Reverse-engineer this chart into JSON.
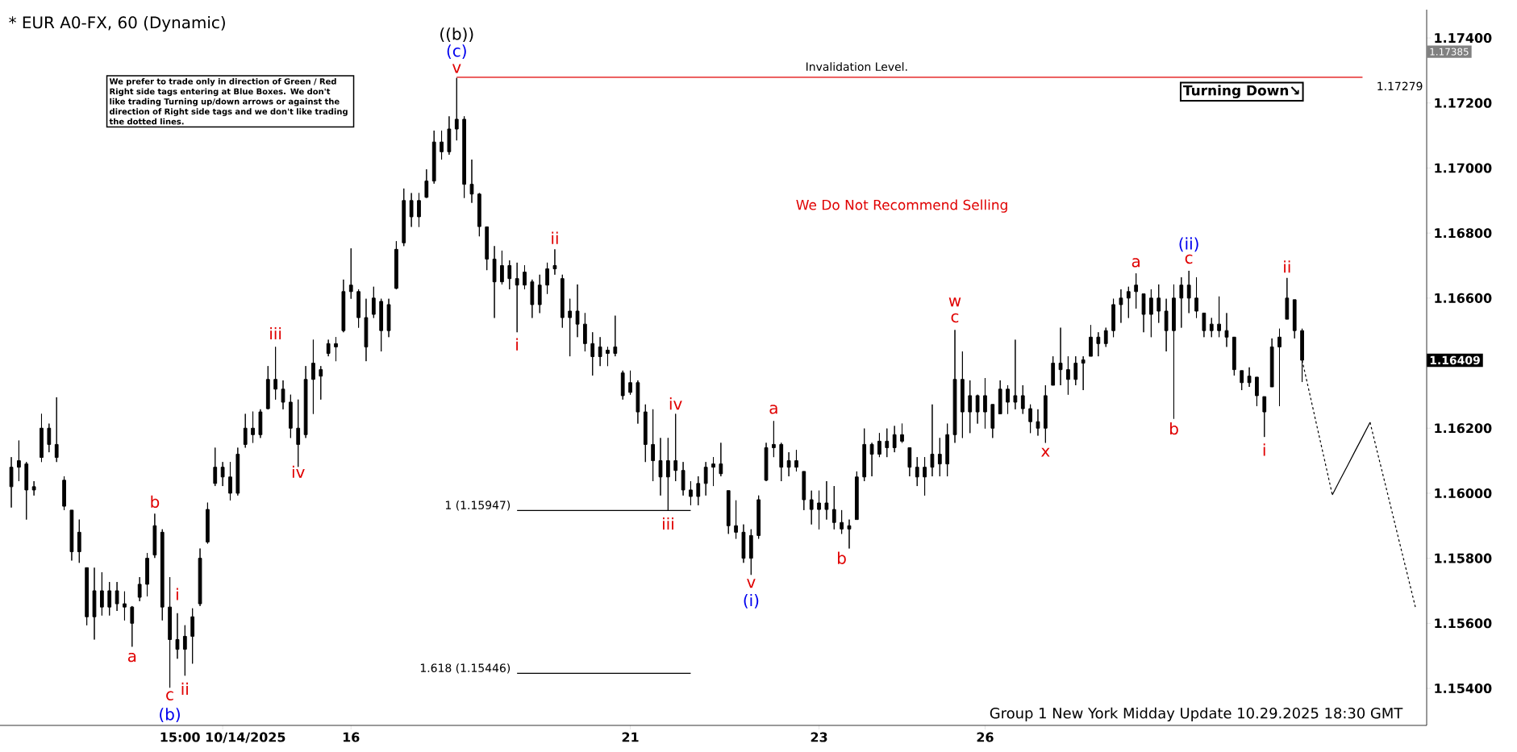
{
  "chart_data": {
    "type": "candlestick",
    "title": "* EUR A0-FX, 60 (Dynamic)",
    "color": "#000000",
    "ylim": [
      1.15286,
      1.17487
    ],
    "yticks": [
      {
        "value": 1.154,
        "label": "1.15400"
      },
      {
        "value": 1.156,
        "label": "1.15600"
      },
      {
        "value": 1.158,
        "label": "1.15800"
      },
      {
        "value": 1.16,
        "label": "1.16000"
      },
      {
        "value": 1.162,
        "label": "1.16200"
      },
      {
        "value": 1.166,
        "label": "1.16600"
      },
      {
        "value": 1.168,
        "label": "1.16800"
      },
      {
        "value": 1.17,
        "label": "1.17000"
      },
      {
        "value": 1.172,
        "label": "1.17200"
      },
      {
        "value": 1.174,
        "label": "1.17400"
      }
    ],
    "categories": [
      null,
      null,
      null,
      null,
      null,
      null,
      null,
      null,
      null,
      null,
      null,
      null,
      null,
      null,
      null,
      null,
      null,
      null,
      null,
      null,
      null,
      null,
      null,
      null,
      null,
      null,
      null,
      null,
      "15:00 10/14/2025",
      null,
      null,
      null,
      null,
      null,
      null,
      null,
      null,
      null,
      null,
      null,
      null,
      null,
      null,
      null,
      null,
      "16",
      null,
      null,
      null,
      null,
      null,
      null,
      null,
      null,
      null,
      null,
      null,
      null,
      null,
      null,
      null,
      null,
      null,
      null,
      null,
      null,
      null,
      null,
      null,
      null,
      null,
      null,
      null,
      null,
      null,
      null,
      null,
      null,
      null,
      null,
      null,
      null,
      "21",
      null,
      null,
      null,
      null,
      null,
      null,
      null,
      null,
      null,
      null,
      null,
      null,
      null,
      null,
      null,
      null,
      null,
      null,
      null,
      null,
      null,
      null,
      null,
      null,
      "23",
      null,
      null,
      null,
      null,
      null,
      null,
      null,
      null,
      null,
      null,
      null,
      null,
      null,
      null,
      null,
      null,
      null,
      null,
      null,
      null,
      null,
      "26",
      null,
      null,
      null,
      null,
      null,
      null,
      null,
      null,
      null,
      null,
      null,
      null,
      null,
      null,
      null,
      null,
      null,
      null,
      null,
      null,
      null,
      null,
      null,
      null,
      null,
      null,
      null,
      null,
      null,
      null,
      null,
      null,
      null,
      null,
      null,
      null,
      null,
      null,
      null,
      null,
      null,
      null,
      null,
      null,
      null,
      null,
      null,
      null,
      null,
      null,
      null,
      null,
      null,
      null,
      null,
      null,
      null
    ],
    "ohlc": [
      [
        1.1602,
        1.16111,
        1.15956,
        1.1608
      ],
      [
        1.1608,
        1.16162,
        1.16037,
        1.161
      ],
      [
        1.1609,
        1.16096,
        1.15919,
        1.1601
      ],
      [
        1.1601,
        1.16037,
        1.15993,
        1.1602
      ],
      [
        1.1611,
        1.16244,
        1.16096,
        1.162
      ],
      [
        1.162,
        1.16214,
        1.16126,
        1.1615
      ],
      [
        1.1615,
        1.16295,
        1.16096,
        1.1611
      ],
      [
        1.1604,
        1.16052,
        1.15948,
        1.1596
      ],
      [
        1.15948,
        1.15948,
        1.15793,
        1.1582
      ],
      [
        1.1582,
        1.15919,
        1.15786,
        1.1588
      ],
      [
        1.15771,
        1.15771,
        1.15594,
        1.1562
      ],
      [
        1.1562,
        1.15771,
        1.1555,
        1.157
      ],
      [
        1.157,
        1.15757,
        1.15624,
        1.1565
      ],
      [
        1.1565,
        1.15727,
        1.15624,
        1.157
      ],
      [
        1.157,
        1.15727,
        1.15638,
        1.1566
      ],
      [
        1.1566,
        1.15698,
        1.15609,
        1.1565
      ],
      [
        1.1565,
        1.15653,
        1.15528,
        1.156
      ],
      [
        1.1568,
        1.15742,
        1.15668,
        1.1572
      ],
      [
        1.1572,
        1.15816,
        1.15683,
        1.158
      ],
      [
        1.1581,
        1.15937,
        1.15801,
        1.159
      ],
      [
        1.1588,
        1.15889,
        1.15609,
        1.1565
      ],
      [
        1.1565,
        1.15742,
        1.15402,
        1.1555
      ],
      [
        1.1555,
        1.15631,
        1.15491,
        1.1552
      ],
      [
        1.1552,
        1.15594,
        1.15439,
        1.1556
      ],
      [
        1.1556,
        1.15646,
        1.15476,
        1.1562
      ],
      [
        1.1566,
        1.1583,
        1.15653,
        1.158
      ],
      [
        1.1585,
        1.15971,
        1.15845,
        1.1595
      ],
      [
        1.1603,
        1.1614,
        1.16022,
        1.1608
      ],
      [
        1.1608,
        1.16096,
        1.16022,
        1.1605
      ],
      [
        1.1605,
        1.16096,
        1.15978,
        1.16
      ],
      [
        1.16,
        1.1614,
        1.15993,
        1.1612
      ],
      [
        1.1615,
        1.16244,
        1.1614,
        1.162
      ],
      [
        1.162,
        1.16251,
        1.16155,
        1.1618
      ],
      [
        1.1618,
        1.16258,
        1.1617,
        1.1625
      ],
      [
        1.1626,
        1.16391,
        1.16258,
        1.1635
      ],
      [
        1.1635,
        1.1645,
        1.16288,
        1.1632
      ],
      [
        1.1632,
        1.16347,
        1.16258,
        1.1628
      ],
      [
        1.1628,
        1.16303,
        1.1617,
        1.162
      ],
      [
        1.162,
        1.16288,
        1.16081,
        1.1615
      ],
      [
        1.1618,
        1.16391,
        1.1617,
        1.1635
      ],
      [
        1.1635,
        1.16472,
        1.16244,
        1.164
      ],
      [
        1.1638,
        1.16391,
        1.16288,
        1.1636
      ],
      [
        1.1643,
        1.16472,
        1.16421,
        1.1646
      ],
      [
        1.1646,
        1.1648,
        1.16406,
        1.1645
      ],
      [
        1.165,
        1.16657,
        1.16495,
        1.1662
      ],
      [
        1.1662,
        1.16753,
        1.16598,
        1.1664
      ],
      [
        1.1662,
        1.16627,
        1.16509,
        1.1654
      ],
      [
        1.1654,
        1.16598,
        1.16406,
        1.1645
      ],
      [
        1.1655,
        1.16635,
        1.16539,
        1.166
      ],
      [
        1.1659,
        1.16598,
        1.16436,
        1.165
      ],
      [
        1.165,
        1.16598,
        1.1648,
        1.1658
      ],
      [
        1.1663,
        1.16775,
        1.16627,
        1.1675
      ],
      [
        1.1677,
        1.16937,
        1.1676,
        1.169
      ],
      [
        1.169,
        1.16923,
        1.16819,
        1.1685
      ],
      [
        1.1685,
        1.16923,
        1.16819,
        1.169
      ],
      [
        1.1691,
        1.16996,
        1.16908,
        1.1696
      ],
      [
        1.1696,
        1.17115,
        1.16952,
        1.1708
      ],
      [
        1.1708,
        1.17115,
        1.17026,
        1.1705
      ],
      [
        1.1705,
        1.17159,
        1.17041,
        1.1712
      ],
      [
        1.1712,
        1.17277,
        1.17085,
        1.1715
      ],
      [
        1.1715,
        1.17159,
        1.16908,
        1.1695
      ],
      [
        1.1695,
        1.17026,
        1.16893,
        1.1692
      ],
      [
        1.1692,
        1.16923,
        1.1679,
        1.1682
      ],
      [
        1.16819,
        1.16819,
        1.16686,
        1.1672
      ],
      [
        1.1672,
        1.1676,
        1.16539,
        1.1665
      ],
      [
        1.1665,
        1.16746,
        1.16642,
        1.167
      ],
      [
        1.167,
        1.16716,
        1.16627,
        1.1666
      ],
      [
        1.1666,
        1.16709,
        1.16495,
        1.1664
      ],
      [
        1.1664,
        1.16701,
        1.16627,
        1.1668
      ],
      [
        1.1665,
        1.16657,
        1.16539,
        1.1658
      ],
      [
        1.1658,
        1.16672,
        1.16554,
        1.1664
      ],
      [
        1.1664,
        1.16709,
        1.16613,
        1.1669
      ],
      [
        1.1669,
        1.1675,
        1.16672,
        1.167
      ],
      [
        1.1666,
        1.16672,
        1.16509,
        1.1654
      ],
      [
        1.1654,
        1.16598,
        1.16421,
        1.1656
      ],
      [
        1.1656,
        1.16642,
        1.1648,
        1.1652
      ],
      [
        1.1652,
        1.16554,
        1.16436,
        1.1646
      ],
      [
        1.1646,
        1.16495,
        1.16362,
        1.1642
      ],
      [
        1.1642,
        1.1648,
        1.16391,
        1.1645
      ],
      [
        1.1644,
        1.1645,
        1.16391,
        1.1643
      ],
      [
        1.1643,
        1.16546,
        1.16421,
        1.1645
      ],
      [
        1.1637,
        1.16377,
        1.16288,
        1.163
      ],
      [
        1.1631,
        1.16377,
        1.16303,
        1.1634
      ],
      [
        1.1634,
        1.16347,
        1.16214,
        1.1625
      ],
      [
        1.1625,
        1.16273,
        1.16096,
        1.1615
      ],
      [
        1.1615,
        1.16258,
        1.16037,
        1.161
      ],
      [
        1.161,
        1.1617,
        1.15993,
        1.1605
      ],
      [
        1.1605,
        1.1617,
        1.15946,
        1.161
      ],
      [
        1.161,
        1.16244,
        1.16037,
        1.1607
      ],
      [
        1.1607,
        1.16096,
        1.15993,
        1.1601
      ],
      [
        1.1601,
        1.16037,
        1.15963,
        1.1599
      ],
      [
        1.1599,
        1.16052,
        1.15963,
        1.1603
      ],
      [
        1.1603,
        1.16096,
        1.15993,
        1.1608
      ],
      [
        1.1608,
        1.16111,
        1.16022,
        1.1609
      ],
      [
        1.1609,
        1.16155,
        1.16052,
        1.1606
      ],
      [
        1.16008,
        1.16008,
        1.15875,
        1.159
      ],
      [
        1.159,
        1.15978,
        1.1586,
        1.1588
      ],
      [
        1.1588,
        1.15904,
        1.15786,
        1.158
      ],
      [
        1.158,
        1.15889,
        1.15749,
        1.1587
      ],
      [
        1.1587,
        1.15993,
        1.1586,
        1.1598
      ],
      [
        1.1604,
        1.16155,
        1.16037,
        1.1614
      ],
      [
        1.1614,
        1.16222,
        1.16111,
        1.1615
      ],
      [
        1.1615,
        1.16155,
        1.16037,
        1.1608
      ],
      [
        1.1608,
        1.16126,
        1.16052,
        1.161
      ],
      [
        1.161,
        1.16133,
        1.16067,
        1.1608
      ],
      [
        1.16067,
        1.16067,
        1.15948,
        1.1598
      ],
      [
        1.1598,
        1.16008,
        1.15904,
        1.1595
      ],
      [
        1.1595,
        1.16008,
        1.15889,
        1.1597
      ],
      [
        1.1597,
        1.16037,
        1.15919,
        1.1595
      ],
      [
        1.1595,
        1.16022,
        1.15889,
        1.1591
      ],
      [
        1.1591,
        1.15948,
        1.15875,
        1.1589
      ],
      [
        1.1589,
        1.15919,
        1.1583,
        1.159
      ],
      [
        1.15919,
        1.16067,
        1.15919,
        1.1605
      ],
      [
        1.1605,
        1.16199,
        1.16037,
        1.1615
      ],
      [
        1.1615,
        1.16155,
        1.16052,
        1.1612
      ],
      [
        1.1612,
        1.16185,
        1.16111,
        1.1616
      ],
      [
        1.1616,
        1.16199,
        1.16111,
        1.1614
      ],
      [
        1.1614,
        1.16207,
        1.16126,
        1.1618
      ],
      [
        1.1618,
        1.16214,
        1.16155,
        1.1616
      ],
      [
        1.1614,
        1.1614,
        1.16052,
        1.1608
      ],
      [
        1.1608,
        1.16111,
        1.16022,
        1.1605
      ],
      [
        1.1605,
        1.16111,
        1.15993,
        1.1608
      ],
      [
        1.1608,
        1.16273,
        1.16052,
        1.1612
      ],
      [
        1.1612,
        1.1617,
        1.16052,
        1.1609
      ],
      [
        1.1609,
        1.16214,
        1.16052,
        1.1618
      ],
      [
        1.1618,
        1.16502,
        1.16155,
        1.1635
      ],
      [
        1.1635,
        1.16436,
        1.1617,
        1.1625
      ],
      [
        1.1625,
        1.16347,
        1.16185,
        1.163
      ],
      [
        1.163,
        1.16303,
        1.16214,
        1.1625
      ],
      [
        1.1625,
        1.16354,
        1.16199,
        1.163
      ],
      [
        1.16273,
        1.16273,
        1.1617,
        1.162
      ],
      [
        1.16244,
        1.16347,
        1.16244,
        1.1632
      ],
      [
        1.1632,
        1.16332,
        1.16244,
        1.1628
      ],
      [
        1.1628,
        1.16472,
        1.16258,
        1.163
      ],
      [
        1.163,
        1.16332,
        1.16244,
        1.1626
      ],
      [
        1.1626,
        1.16273,
        1.16185,
        1.1622
      ],
      [
        1.1622,
        1.16258,
        1.16177,
        1.162
      ],
      [
        1.162,
        1.16332,
        1.16155,
        1.163
      ],
      [
        1.16332,
        1.16421,
        1.16332,
        1.164
      ],
      [
        1.164,
        1.16509,
        1.16332,
        1.1638
      ],
      [
        1.1638,
        1.16421,
        1.16303,
        1.1635
      ],
      [
        1.1635,
        1.16421,
        1.16332,
        1.164
      ],
      [
        1.164,
        1.16421,
        1.16317,
        1.1641
      ],
      [
        1.16421,
        1.16517,
        1.16421,
        1.1648
      ],
      [
        1.1648,
        1.16495,
        1.16421,
        1.1646
      ],
      [
        1.1646,
        1.16509,
        1.1645,
        1.165
      ],
      [
        1.165,
        1.16598,
        1.1648,
        1.1658
      ],
      [
        1.1658,
        1.16627,
        1.16524,
        1.166
      ],
      [
        1.166,
        1.16635,
        1.16539,
        1.1662
      ],
      [
        1.1662,
        1.16676,
        1.16568,
        1.1664
      ],
      [
        1.16613,
        1.16613,
        1.16495,
        1.1655
      ],
      [
        1.1655,
        1.16627,
        1.1648,
        1.166
      ],
      [
        1.166,
        1.16642,
        1.16524,
        1.1656
      ],
      [
        1.1656,
        1.16598,
        1.16436,
        1.165
      ],
      [
        1.165,
        1.16642,
        1.16229,
        1.166
      ],
      [
        1.166,
        1.16664,
        1.16509,
        1.1664
      ],
      [
        1.1664,
        1.16684,
        1.16554,
        1.166
      ],
      [
        1.166,
        1.16664,
        1.16539,
        1.1656
      ],
      [
        1.16554,
        1.16554,
        1.1648,
        1.165
      ],
      [
        1.165,
        1.16539,
        1.1648,
        1.1652
      ],
      [
        1.1652,
        1.16605,
        1.1648,
        1.165
      ],
      [
        1.165,
        1.16554,
        1.1645,
        1.1648
      ],
      [
        1.1648,
        1.1648,
        1.16362,
        1.1638
      ],
      [
        1.16377,
        1.16377,
        1.16317,
        1.1634
      ],
      [
        1.1634,
        1.16387,
        1.16327,
        1.1636
      ],
      [
        1.16357,
        1.16357,
        1.16268,
        1.163
      ],
      [
        1.16297,
        1.16297,
        1.16173,
        1.1625
      ],
      [
        1.16327,
        1.16476,
        1.16327,
        1.1645
      ],
      [
        1.1645,
        1.16506,
        1.16268,
        1.1648
      ],
      [
        1.16535,
        1.16662,
        1.16535,
        1.166
      ],
      [
        1.16595,
        1.16595,
        1.16476,
        1.165
      ],
      [
        1.165,
        1.16506,
        1.16342,
        1.16409
      ],
      null,
      null,
      null,
      null,
      null,
      null,
      null,
      null,
      null,
      null,
      null,
      null,
      null,
      null,
      null
    ],
    "series": [
      {
        "type": "line",
        "color": "#e00000",
        "values": [
          null,
          null,
          null,
          null,
          null,
          null,
          null,
          null,
          null,
          null,
          null,
          null,
          null,
          null,
          null,
          null,
          null,
          null,
          null,
          null,
          null,
          null,
          null,
          null,
          null,
          null,
          null,
          null,
          null,
          null,
          null,
          null,
          null,
          null,
          null,
          null,
          null,
          null,
          null,
          null,
          null,
          null,
          null,
          null,
          null,
          null,
          null,
          null,
          null,
          null,
          null,
          null,
          null,
          null,
          null,
          null,
          null,
          null,
          null,
          1.17279,
          1.17279,
          1.17279,
          1.17279,
          1.17279,
          1.17279,
          1.17279,
          1.17279,
          1.17279,
          1.17279,
          1.17279,
          1.17279,
          1.17279,
          1.17279,
          1.17279,
          1.17279,
          1.17279,
          1.17279,
          1.17279,
          1.17279,
          1.17279,
          1.17279,
          1.17279,
          1.17279,
          1.17279,
          1.17279,
          1.17279,
          1.17279,
          1.17279,
          1.17279,
          1.17279,
          1.17279,
          1.17279,
          1.17279,
          1.17279,
          1.17279,
          1.17279,
          1.17279,
          1.17279,
          1.17279,
          1.17279,
          1.17279,
          1.17279,
          1.17279,
          1.17279,
          1.17279,
          1.17279,
          1.17279,
          1.17279,
          1.17279,
          1.17279,
          1.17279,
          1.17279,
          1.17279,
          1.17279,
          1.17279,
          1.17279,
          1.17279,
          1.17279,
          1.17279,
          1.17279,
          1.17279,
          1.17279,
          1.17279,
          1.17279,
          1.17279,
          1.17279,
          1.17279,
          1.17279,
          1.17279,
          1.17279,
          1.17279,
          1.17279,
          1.17279,
          1.17279,
          1.17279,
          1.17279,
          1.17279,
          1.17279,
          1.17279,
          1.17279,
          1.17279,
          1.17279,
          1.17279,
          1.17279,
          1.17279,
          1.17279,
          1.17279,
          1.17279,
          1.17279,
          1.17279,
          1.17279,
          1.17279,
          1.17279,
          1.17279,
          1.17279,
          1.17279,
          1.17279,
          1.17279,
          1.17279,
          1.17279,
          1.17279,
          1.17279,
          1.17279,
          1.17279,
          1.17279,
          1.17279,
          1.17279,
          1.17279,
          1.17279,
          1.17279,
          1.17279,
          1.17279,
          1.17279,
          1.17279,
          1.17279,
          1.17279,
          1.17279,
          1.17279,
          1.17279,
          1.17279,
          null,
          null,
          null,
          null,
          null,
          null,
          null
        ]
      },
      {
        "type": "line",
        "color": "#000000",
        "values": [
          null,
          null,
          null,
          null,
          null,
          null,
          null,
          null,
          null,
          null,
          null,
          null,
          null,
          null,
          null,
          null,
          null,
          null,
          null,
          null,
          null,
          null,
          null,
          null,
          null,
          null,
          null,
          null,
          null,
          null,
          null,
          null,
          null,
          null,
          null,
          null,
          null,
          null,
          null,
          null,
          null,
          null,
          null,
          null,
          null,
          null,
          null,
          null,
          null,
          null,
          null,
          null,
          null,
          null,
          null,
          null,
          null,
          null,
          null,
          null,
          null,
          null,
          null,
          null,
          null,
          null,
          null,
          1.15947,
          1.15947,
          1.15947,
          1.15947,
          1.15947,
          1.15947,
          1.15947,
          1.15947,
          1.15947,
          1.15947,
          1.15947,
          1.15947,
          1.15947,
          1.15947,
          1.15947,
          1.15947,
          1.15947,
          1.15947,
          1.15947,
          1.15947,
          1.15947,
          1.15947,
          1.15947,
          1.15947,
          null,
          null,
          null,
          null,
          null,
          null,
          null,
          null,
          null,
          null,
          null,
          null,
          null,
          null,
          null,
          null,
          null,
          null,
          null,
          null,
          null,
          null,
          null,
          null,
          null,
          null,
          null,
          null,
          null,
          null,
          null,
          null,
          null,
          null,
          null,
          null,
          null,
          null,
          null,
          null,
          null,
          null,
          null,
          null,
          null,
          null,
          null,
          null,
          null,
          null,
          null,
          null,
          null,
          null,
          null,
          null,
          null,
          null,
          null,
          null,
          null,
          null,
          null,
          null,
          null,
          null,
          null,
          null,
          null,
          null,
          null,
          null,
          null,
          null,
          null,
          null,
          null,
          null,
          null,
          null,
          null,
          null,
          null,
          null,
          null,
          null,
          null,
          null,
          null,
          null,
          null,
          null,
          null,
          null,
          null,
          null
        ]
      },
      {
        "type": "line",
        "color": "#000000",
        "values": [
          null,
          null,
          null,
          null,
          null,
          null,
          null,
          null,
          null,
          null,
          null,
          null,
          null,
          null,
          null,
          null,
          null,
          null,
          null,
          null,
          null,
          null,
          null,
          null,
          null,
          null,
          null,
          null,
          null,
          null,
          null,
          null,
          null,
          null,
          null,
          null,
          null,
          null,
          null,
          null,
          null,
          null,
          null,
          null,
          null,
          null,
          null,
          null,
          null,
          null,
          null,
          null,
          null,
          null,
          null,
          null,
          null,
          null,
          null,
          null,
          null,
          null,
          null,
          null,
          null,
          null,
          null,
          1.15446,
          1.15446,
          1.15446,
          1.15446,
          1.15446,
          1.15446,
          1.15446,
          1.15446,
          1.15446,
          1.15446,
          1.15446,
          1.15446,
          1.15446,
          1.15446,
          1.15446,
          1.15446,
          1.15446,
          1.15446,
          1.15446,
          1.15446,
          1.15446,
          1.15446,
          1.15446,
          1.15446,
          null,
          null,
          null,
          null,
          null,
          null,
          null,
          null,
          null,
          null,
          null,
          null,
          null,
          null,
          null,
          null,
          null,
          null,
          null,
          null,
          null,
          null,
          null,
          null,
          null,
          null,
          null,
          null,
          null,
          null,
          null,
          null,
          null,
          null,
          null,
          null,
          null,
          null,
          null,
          null,
          null,
          null,
          null,
          null,
          null,
          null,
          null,
          null,
          null,
          null,
          null,
          null,
          null,
          null,
          null,
          null,
          null,
          null,
          null,
          null,
          null,
          null,
          null,
          null,
          null,
          null,
          null,
          null,
          null,
          null,
          null,
          null,
          null,
          null,
          null,
          null,
          null,
          null,
          null,
          null,
          null,
          null,
          null,
          null,
          null,
          null,
          null,
          null,
          null,
          null,
          null,
          null,
          null,
          null,
          null,
          null
        ]
      },
      {
        "type": "line",
        "color": "#000000",
        "line_style": "dashed",
        "values": [
          null,
          null,
          null,
          null,
          null,
          null,
          null,
          null,
          null,
          null,
          null,
          null,
          null,
          null,
          null,
          null,
          null,
          null,
          null,
          null,
          null,
          null,
          null,
          null,
          null,
          null,
          null,
          null,
          null,
          null,
          null,
          null,
          null,
          null,
          null,
          null,
          null,
          null,
          null,
          null,
          null,
          null,
          null,
          null,
          null,
          null,
          null,
          null,
          null,
          null,
          null,
          null,
          null,
          null,
          null,
          null,
          null,
          null,
          null,
          null,
          null,
          null,
          null,
          null,
          null,
          null,
          null,
          null,
          null,
          null,
          null,
          null,
          null,
          null,
          null,
          null,
          null,
          null,
          null,
          null,
          null,
          null,
          null,
          null,
          null,
          null,
          null,
          null,
          null,
          null,
          null,
          null,
          null,
          null,
          null,
          null,
          null,
          null,
          null,
          null,
          null,
          null,
          null,
          null,
          null,
          null,
          null,
          null,
          null,
          null,
          null,
          null,
          null,
          null,
          null,
          null,
          null,
          null,
          null,
          null,
          null,
          null,
          null,
          null,
          null,
          null,
          null,
          null,
          null,
          null,
          null,
          null,
          null,
          null,
          null,
          null,
          null,
          null,
          null,
          null,
          null,
          null,
          null,
          null,
          null,
          null,
          null,
          null,
          null,
          null,
          null,
          null,
          null,
          null,
          null,
          null,
          null,
          null,
          null,
          null,
          null,
          null,
          null,
          null,
          null,
          null,
          null,
          null,
          null,
          null,
          null,
          1.16409,
          1.16306,
          1.16202,
          1.16099,
          1.15995,
          null,
          null,
          null,
          null,
          null,
          null,
          null,
          null,
          null,
          null,
          null
        ]
      },
      {
        "type": "line",
        "color": "#000000",
        "line_style": "solid",
        "values": [
          null,
          null,
          null,
          null,
          null,
          null,
          null,
          null,
          null,
          null,
          null,
          null,
          null,
          null,
          null,
          null,
          null,
          null,
          null,
          null,
          null,
          null,
          null,
          null,
          null,
          null,
          null,
          null,
          null,
          null,
          null,
          null,
          null,
          null,
          null,
          null,
          null,
          null,
          null,
          null,
          null,
          null,
          null,
          null,
          null,
          null,
          null,
          null,
          null,
          null,
          null,
          null,
          null,
          null,
          null,
          null,
          null,
          null,
          null,
          null,
          null,
          null,
          null,
          null,
          null,
          null,
          null,
          null,
          null,
          null,
          null,
          null,
          null,
          null,
          null,
          null,
          null,
          null,
          null,
          null,
          null,
          null,
          null,
          null,
          null,
          null,
          null,
          null,
          null,
          null,
          null,
          null,
          null,
          null,
          null,
          null,
          null,
          null,
          null,
          null,
          null,
          null,
          null,
          null,
          null,
          null,
          null,
          null,
          null,
          null,
          null,
          null,
          null,
          null,
          null,
          null,
          null,
          null,
          null,
          null,
          null,
          null,
          null,
          null,
          null,
          null,
          null,
          null,
          null,
          null,
          null,
          null,
          null,
          null,
          null,
          null,
          null,
          null,
          null,
          null,
          null,
          null,
          null,
          null,
          null,
          null,
          null,
          null,
          null,
          null,
          null,
          null,
          null,
          null,
          null,
          null,
          null,
          null,
          null,
          null,
          null,
          null,
          null,
          null,
          null,
          null,
          null,
          null,
          null,
          null,
          null,
          null,
          null,
          null,
          null,
          1.15995,
          1.1604,
          1.16084,
          1.16129,
          1.16173,
          1.16218,
          null,
          null,
          null,
          null,
          null,
          null
        ]
      },
      {
        "type": "line",
        "color": "#000000",
        "line_style": "dashed",
        "values": [
          null,
          null,
          null,
          null,
          null,
          null,
          null,
          null,
          null,
          null,
          null,
          null,
          null,
          null,
          null,
          null,
          null,
          null,
          null,
          null,
          null,
          null,
          null,
          null,
          null,
          null,
          null,
          null,
          null,
          null,
          null,
          null,
          null,
          null,
          null,
          null,
          null,
          null,
          null,
          null,
          null,
          null,
          null,
          null,
          null,
          null,
          null,
          null,
          null,
          null,
          null,
          null,
          null,
          null,
          null,
          null,
          null,
          null,
          null,
          null,
          null,
          null,
          null,
          null,
          null,
          null,
          null,
          null,
          null,
          null,
          null,
          null,
          null,
          null,
          null,
          null,
          null,
          null,
          null,
          null,
          null,
          null,
          null,
          null,
          null,
          null,
          null,
          null,
          null,
          null,
          null,
          null,
          null,
          null,
          null,
          null,
          null,
          null,
          null,
          null,
          null,
          null,
          null,
          null,
          null,
          null,
          null,
          null,
          null,
          null,
          null,
          null,
          null,
          null,
          null,
          null,
          null,
          null,
          null,
          null,
          null,
          null,
          null,
          null,
          null,
          null,
          null,
          null,
          null,
          null,
          null,
          null,
          null,
          null,
          null,
          null,
          null,
          null,
          null,
          null,
          null,
          null,
          null,
          null,
          null,
          null,
          null,
          null,
          null,
          null,
          null,
          null,
          null,
          null,
          null,
          null,
          null,
          null,
          null,
          null,
          null,
          null,
          null,
          null,
          null,
          null,
          null,
          null,
          null,
          null,
          null,
          null,
          null,
          null,
          null,
          null,
          null,
          null,
          null,
          null,
          1.16218,
          1.16123,
          1.16029,
          1.15934,
          1.15839,
          1.15745,
          1.1565
        ]
      }
    ],
    "annotations": [
      "a",
      "b",
      "i",
      "c",
      "ii",
      "(b)",
      "iii",
      "iv",
      "v",
      "(c)",
      "((b))",
      "i",
      "ii",
      "iii",
      "iv",
      "v",
      "(i)",
      "a",
      "b",
      "w",
      "c",
      "x",
      "a",
      "(ii)",
      "c",
      "b",
      "i",
      "ii",
      "We prefer to trade only in direction of Green / Red Right side tags entering at Blue Boxes. We don't like trading Turning up/down arrows or against the direction of Right side tags and we don't like trading the dotted lines.",
      "Invalidation Level.",
      "1.17279",
      "Turning Down↘",
      "We Do Not Recommend Selling",
      "1 (1.15947)",
      "1.618 (1.15446)",
      "Group 1 New York Midday Update 10.29.2025 18:30 GMT",
      "1.17385",
      "1.16409"
    ]
  }
}
